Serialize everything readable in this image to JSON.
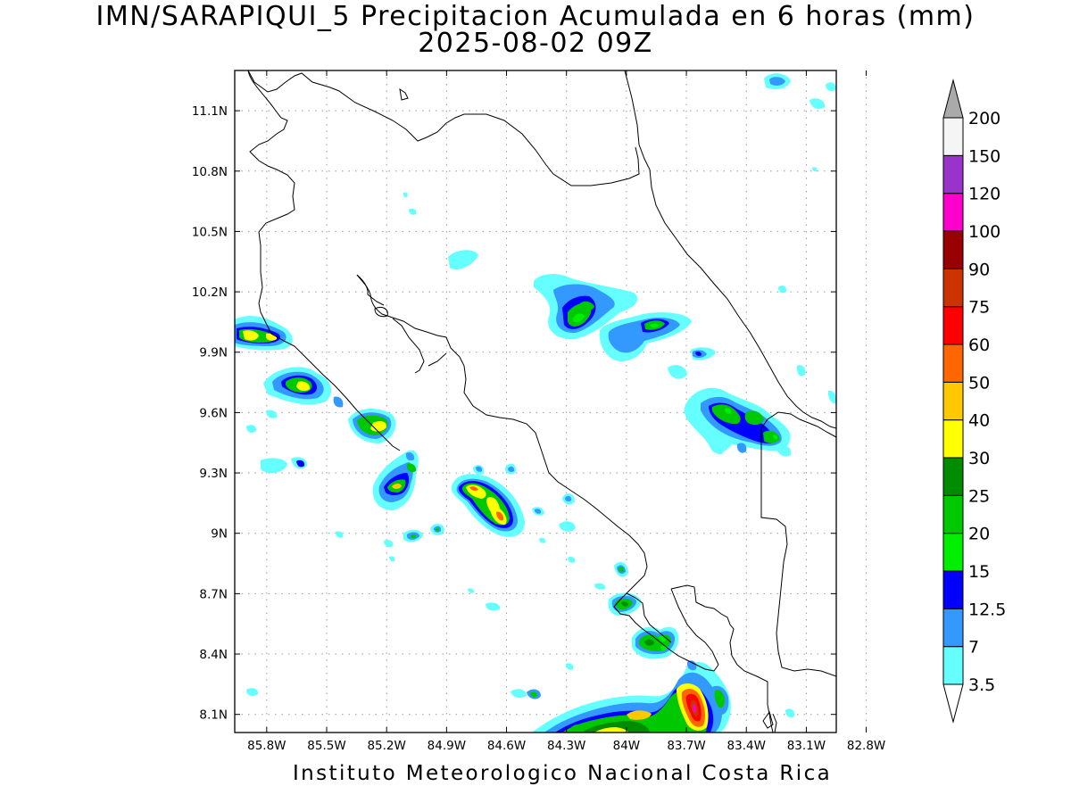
{
  "title": {
    "line1": "IMN/SARAPIQUI_5 Precipitacion Acumulada en 6 horas (mm)",
    "line2": "2025-08-02 09Z"
  },
  "footer": "Instituto Meteorologico Nacional Costa Rica",
  "map": {
    "lon_range": [
      -85.96,
      -82.95
    ],
    "lat_range": [
      8.01,
      11.3
    ],
    "lon_ticks": [
      {
        "value": -85.8,
        "label": "85.8W"
      },
      {
        "value": -85.5,
        "label": "85.5W"
      },
      {
        "value": -85.2,
        "label": "85.2W"
      },
      {
        "value": -84.9,
        "label": "84.9W"
      },
      {
        "value": -84.6,
        "label": "84.6W"
      },
      {
        "value": -84.3,
        "label": "84.3W"
      },
      {
        "value": -84.0,
        "label": "84W"
      },
      {
        "value": -83.7,
        "label": "83.7W"
      },
      {
        "value": -83.4,
        "label": "83.4W"
      },
      {
        "value": -83.1,
        "label": "83.1W"
      },
      {
        "value": -82.8,
        "label": "82.8W"
      }
    ],
    "lat_ticks": [
      {
        "value": 11.1,
        "label": "11.1N"
      },
      {
        "value": 10.8,
        "label": "10.8N"
      },
      {
        "value": 10.5,
        "label": "10.5N"
      },
      {
        "value": 10.2,
        "label": "10.2N"
      },
      {
        "value": 9.9,
        "label": "9.9N"
      },
      {
        "value": 9.6,
        "label": "9.6N"
      },
      {
        "value": 9.3,
        "label": "9.3N"
      },
      {
        "value": 9.0,
        "label": "9N"
      },
      {
        "value": 8.7,
        "label": "8.7N"
      },
      {
        "value": 8.4,
        "label": "8.4N"
      },
      {
        "value": 8.1,
        "label": "8.1N"
      }
    ],
    "grid": "dotted"
  },
  "colorbar": {
    "labels": [
      "3.5",
      "7",
      "12.5",
      "15",
      "20",
      "25",
      "30",
      "40",
      "50",
      "60",
      "75",
      "90",
      "100",
      "120",
      "150",
      "200"
    ],
    "colors": [
      "#66ffff",
      "#3399ff",
      "#0000ff",
      "#00ee00",
      "#00c800",
      "#008c00",
      "#ffff00",
      "#ffc800",
      "#ff6600",
      "#ff0000",
      "#cc3300",
      "#990000",
      "#ff00cc",
      "#9933cc",
      "#f5f5f5",
      "#aaaaaa"
    ]
  }
}
